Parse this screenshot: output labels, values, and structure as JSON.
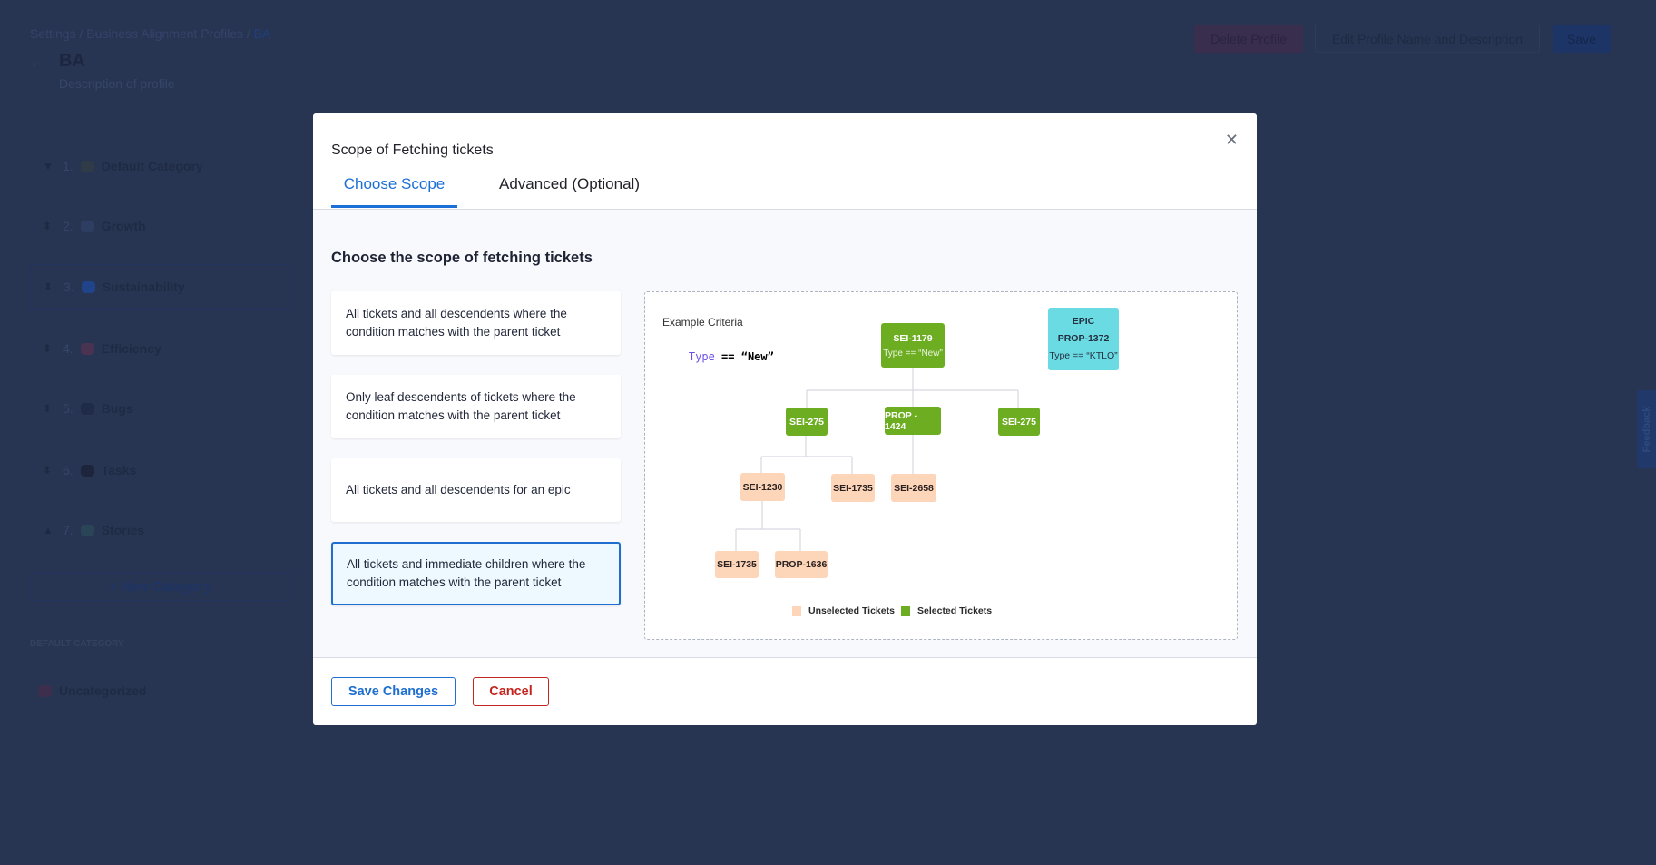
{
  "page": {
    "breadcrumb": [
      "Settings",
      "Business Alignment Profiles",
      "BA"
    ],
    "title": "BA",
    "description": "Description of profile",
    "buttons": {
      "delete": "Delete Profile",
      "edit": "Edit Profile Name and Description",
      "save": "Save"
    },
    "categories": [
      {
        "num": "1.",
        "name": "Default Category",
        "color": "#2f3b47"
      },
      {
        "num": "2.",
        "name": "Growth",
        "color": "#2e3e62"
      },
      {
        "num": "3.",
        "name": "Sustainability",
        "color": "#1f4489"
      },
      {
        "num": "4.",
        "name": "Efficiency",
        "color": "#4a3350"
      },
      {
        "num": "5.",
        "name": "Bugs",
        "color": "#1f2b48"
      },
      {
        "num": "6.",
        "name": "Tasks",
        "color": "#1d253d"
      },
      {
        "num": "7.",
        "name": "Stories",
        "color": "#2a4458"
      }
    ],
    "new_category": "+ New Category",
    "default_category_label": "DEFAULT CATEGORY",
    "uncategorized": "Uncategorized",
    "feedback": "Feedback"
  },
  "modal": {
    "title": "Scope of Fetching tickets",
    "tabs": [
      "Choose Scope",
      "Advanced (Optional)"
    ],
    "active_tab": 0,
    "heading": "Choose the scope of fetching tickets",
    "options": [
      "All tickets and all descendents where the condition matches with the parent ticket",
      "Only leaf descendents of tickets where the condition matches with the parent ticket",
      "All tickets and all descendents for an epic",
      "All tickets and immediate children where the condition matches with the parent ticket"
    ],
    "selected_option": 3,
    "diagram": {
      "criteria_label": "Example Criteria",
      "criteria_key": "Type",
      "criteria_op": "==",
      "criteria_value": "“New”",
      "nodes": [
        {
          "label": "SEI-1179",
          "sub": "Type == “New”",
          "state": "selected"
        },
        {
          "label": "EPIC",
          "label2": "PROP-1372",
          "sub": "Type == “KTLO”",
          "state": "epic"
        },
        {
          "label": "SEI-275",
          "state": "selected"
        },
        {
          "label": "PROP - 1424",
          "state": "selected"
        },
        {
          "label": "SEI-275",
          "state": "selected"
        },
        {
          "label": "SEI-1230",
          "state": "unselected"
        },
        {
          "label": "SEI-1735",
          "state": "unselected"
        },
        {
          "label": "SEI-2658",
          "state": "unselected"
        },
        {
          "label": "SEI-1735",
          "state": "unselected"
        },
        {
          "label": "PROP-1636",
          "state": "unselected"
        }
      ],
      "legend": [
        {
          "label": "Unselected Tickets",
          "color": "#fdd5b8"
        },
        {
          "label": "Selected Tickets",
          "color": "#6cad21"
        }
      ]
    },
    "save_label": "Save Changes",
    "cancel_label": "Cancel"
  }
}
